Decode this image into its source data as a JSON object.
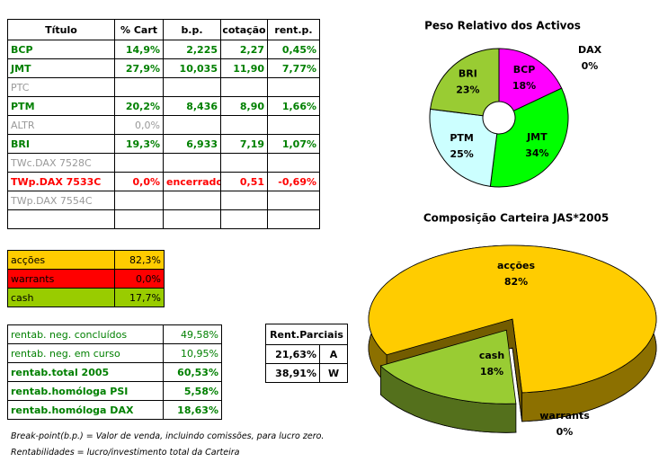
{
  "positions": {
    "header": [
      "Título",
      "% Cart",
      "b.p.",
      "cotação",
      "rent.p."
    ],
    "rows": [
      [
        "BCP",
        "14,9%",
        "2,225",
        "2,27",
        "0,45%"
      ],
      [
        "JMT",
        "27,9%",
        "10,035",
        "11,90",
        "7,77%"
      ],
      [
        "PTC",
        null,
        null,
        null,
        null
      ],
      [
        "PTM",
        "20,2%",
        "8,436",
        "8,90",
        "1,66%"
      ],
      [
        "ALTR",
        "0,0%",
        null,
        null,
        null
      ],
      [
        "BRI",
        "19,3%",
        "6,933",
        "7,19",
        "1,07%"
      ],
      [
        "TWc.DAX 7528C",
        null,
        null,
        null,
        null
      ],
      [
        "TWp.DAX 7533C",
        "0,0%",
        "encerrado",
        "0,51",
        "-0,69%"
      ],
      [
        "TWp.DAX 7554C",
        null,
        null,
        null,
        null
      ],
      [
        null,
        null,
        null,
        null,
        null
      ]
    ]
  },
  "allocation": {
    "rows": [
      [
        "acções",
        "82,3%"
      ],
      [
        "warrants",
        "0,0%"
      ],
      [
        "cash",
        "17,7%"
      ]
    ]
  },
  "returns": {
    "rows": [
      [
        "rentab. neg. concluídos",
        "49,58%"
      ],
      [
        "rentab. neg. em curso",
        "10,95%"
      ],
      [
        "rentab.total 2005",
        "60,53%"
      ],
      [
        "rentab.homóloga PSI",
        "5,58%"
      ],
      [
        "rentab.homóloga DAX",
        "18,63%"
      ]
    ]
  },
  "partials": {
    "header": "Rent.Parciais",
    "rows": [
      [
        "21,63%",
        "A"
      ],
      [
        "38,91%",
        "W"
      ]
    ]
  },
  "notes": [
    "Break-point(b.p.) = Valor de venda, incluindo comissões, para lucro zero.",
    "Rentabilidades = lucro/investimento total da Carteira"
  ],
  "chart_data": [
    {
      "type": "donut",
      "title": "Peso Relativo dos Activos",
      "categories": [
        "BCP",
        "JMT",
        "PTM",
        "BRI",
        "DAX"
      ],
      "values": [
        18,
        34,
        25,
        23,
        0
      ],
      "value_labels": [
        "18%",
        "34%",
        "25%",
        "23%",
        "0%"
      ],
      "colors": [
        "#ff00ff",
        "#00ff00",
        "#ccffff",
        "#99cc33",
        "#3366ff"
      ]
    },
    {
      "type": "pie3d",
      "title": "Composição Carteira JAS*2005",
      "categories": [
        "acções",
        "warrants",
        "cash"
      ],
      "values": [
        82,
        0,
        18
      ],
      "value_labels": [
        "82%",
        "0%",
        "18%"
      ],
      "colors": [
        "#ffcc00",
        "#cc0000",
        "#99cc33"
      ]
    }
  ]
}
